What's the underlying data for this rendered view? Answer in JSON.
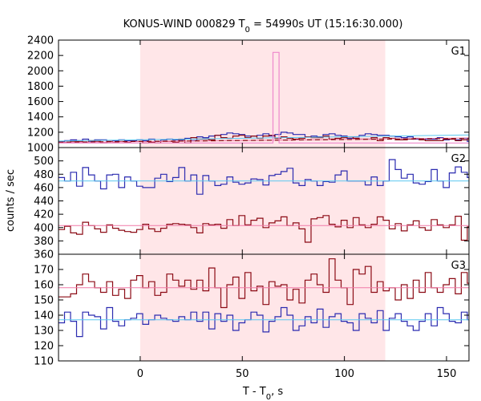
{
  "chart_data": {
    "type": "line",
    "title": {
      "prefix": "KONUS-WIND 000829 T",
      "sub": "0",
      "suffix": " = 54990s UT (15:16:30.000)"
    },
    "xlabel": {
      "prefix": "T - T",
      "sub": "0",
      "suffix": ", s"
    },
    "ylabel": "counts / sec",
    "xlim": [
      -40,
      161
    ],
    "xticks": [
      0,
      50,
      100,
      150
    ],
    "shaded_interval": [
      0,
      120
    ],
    "colors": {
      "band": "#ffe6e8",
      "series1": "#2b2bb0",
      "series2": "#8b0a14",
      "fit1": "#5bc8f0",
      "fit2": "#f07aa8",
      "outline": "#ee88cc",
      "frame": "#000000"
    },
    "panels": [
      {
        "label": "G1",
        "ylim": [
          1000,
          2400
        ],
        "yticks": [
          1000,
          1200,
          1400,
          1600,
          1800,
          2000,
          2200,
          2400
        ],
        "bin_width": 2.944,
        "x_start": -40,
        "series": [
          {
            "values": [
              1080,
              1090,
              1100,
              1090,
              1110,
              1080,
              1100,
              1100,
              1080,
              1090,
              1100,
              1090,
              1090,
              1100,
              1090,
              1110,
              1080,
              1100,
              1110,
              1100,
              1100,
              1120,
              1090,
              1140,
              1130,
              1150,
              1160,
              1170,
              1190,
              1180,
              1170,
              1150,
              1150,
              1160,
              1180,
              1150,
              1170,
              1200,
              1190,
              1170,
              1170,
              1140,
              1150,
              1140,
              1170,
              1180,
              1160,
              1150,
              1120,
              1140,
              1160,
              1180,
              1170,
              1160,
              1160,
              1150,
              1140,
              1130,
              1140,
              1110,
              1100,
              1110,
              1110,
              1130,
              1100,
              1110,
              1100,
              1120,
              1080
            ]
          },
          {
            "values": [
              1070,
              1070,
              1080,
              1080,
              1070,
              1090,
              1080,
              1060,
              1080,
              1070,
              1080,
              1070,
              1080,
              1080,
              1060,
              1070,
              1060,
              1080,
              1080,
              1070,
              1110,
              1060,
              1130,
              1110,
              1110,
              1100,
              1160,
              1130,
              1120,
              1150,
              1160,
              1130,
              1150,
              1120,
              1150,
              1160,
              1120,
              1140,
              1120,
              1110,
              1120,
              1140,
              1130,
              1130,
              1150,
              1110,
              1120,
              1130,
              1140,
              1120,
              1110,
              1110,
              1130,
              1090,
              1130,
              1120,
              1100,
              1100,
              1110,
              1120,
              1100,
              1090,
              1090,
              1090,
              1110,
              1110,
              1090,
              1100,
              1100
            ]
          }
        ],
        "fits": [
          {
            "start": 1085,
            "end": 1165
          },
          {
            "start": 1065,
            "end": 1125
          }
        ],
        "outline": [
          {
            "x0": -40,
            "x1": 65,
            "y": 1060
          },
          {
            "x0": 65,
            "x1": 68,
            "y": 2240
          },
          {
            "x0": 68,
            "x1": 161,
            "y": 1060
          }
        ]
      },
      {
        "label": "G2",
        "ylim": [
          360,
          520
        ],
        "yticks": [
          360,
          380,
          400,
          420,
          440,
          460,
          480,
          500
        ],
        "bin_width": 2.944,
        "x_start": -40,
        "series": [
          {
            "values": [
              475,
              470,
              483,
              462,
              490,
              479,
              470,
              458,
              479,
              480,
              460,
              476,
              470,
              462,
              460,
              460,
              474,
              480,
              469,
              475,
              490,
              470,
              479,
              450,
              478,
              470,
              463,
              465,
              476,
              468,
              465,
              467,
              473,
              472,
              464,
              478,
              480,
              484,
              489,
              467,
              463,
              472,
              470,
              463,
              469,
              468,
              479,
              485,
              470,
              470,
              470,
              464,
              476,
              463,
              470,
              502,
              487,
              474,
              480,
              467,
              465,
              469,
              487,
              470,
              460,
              482,
              491,
              483,
              475
            ]
          },
          {
            "values": [
              397,
              402,
              392,
              390,
              408,
              403,
              398,
              393,
              404,
              399,
              396,
              394,
              393,
              397,
              405,
              398,
              394,
              399,
              405,
              406,
              405,
              404,
              400,
              392,
              406,
              404,
              405,
              399,
              412,
              403,
              418,
              404,
              411,
              414,
              400,
              407,
              410,
              416,
              403,
              407,
              398,
              378,
              413,
              415,
              418,
              405,
              401,
              411,
              400,
              415,
              404,
              400,
              405,
              416,
              411,
              398,
              406,
              395,
              404,
              410,
              400,
              396,
              412,
              404,
              400,
              404,
              417,
              381,
              401
            ]
          }
        ],
        "fits": [
          {
            "start": 470,
            "end": 470
          },
          {
            "start": 403,
            "end": 403
          }
        ],
        "outline": []
      },
      {
        "label": "G3",
        "ylim": [
          110,
          180
        ],
        "yticks": [
          110,
          120,
          130,
          140,
          150,
          160,
          170
        ],
        "bin_width": 2.944,
        "x_start": -40,
        "series": [
          {
            "values": [
              135,
              142,
              136,
              126,
              142,
              140,
              139,
              131,
              145,
              136,
              133,
              137,
              138,
              141,
              134,
              137,
              140,
              138,
              137,
              136,
              139,
              137,
              142,
              136,
              142,
              131,
              141,
              136,
              140,
              130,
              135,
              137,
              142,
              140,
              129,
              136,
              139,
              145,
              140,
              130,
              133,
              139,
              135,
              144,
              132,
              139,
              141,
              136,
              135,
              130,
              141,
              138,
              135,
              143,
              130,
              138,
              141,
              136,
              133,
              130,
              136,
              141,
              133,
              145,
              141,
              136,
              135,
              142,
              137
            ]
          },
          {
            "values": [
              152,
              152,
              154,
              160,
              167,
              162,
              158,
              155,
              162,
              153,
              157,
              151,
              163,
              166,
              158,
              162,
              153,
              155,
              167,
              163,
              159,
              163,
              157,
              163,
              156,
              171,
              158,
              145,
              160,
              165,
              151,
              168,
              156,
              159,
              147,
              162,
              159,
              160,
              150,
              157,
              148,
              163,
              167,
              160,
              155,
              177,
              163,
              158,
              147,
              170,
              167,
              172,
              155,
              162,
              156,
              158,
              150,
              160,
              151,
              163,
              155,
              168,
              158,
              155,
              160,
              164,
              154,
              168,
              161
            ]
          }
        ],
        "fits": [
          {
            "start": 137,
            "end": 137
          },
          {
            "start": 158,
            "end": 158
          }
        ],
        "outline": []
      }
    ]
  }
}
